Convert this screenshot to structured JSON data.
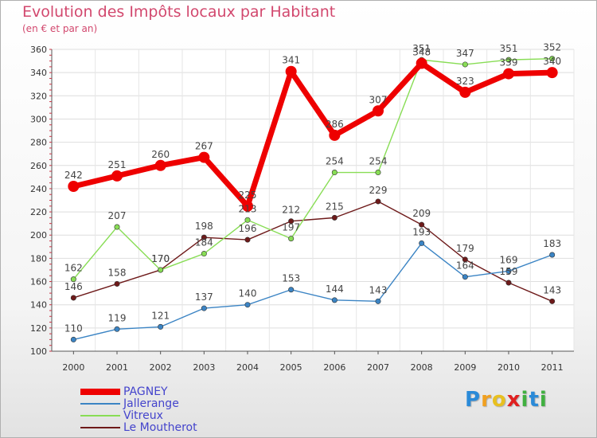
{
  "chart_data": {
    "type": "line",
    "title": "Evolution des Impôts locaux par Habitant",
    "subtitle": "(en € et par an)",
    "xlabel": "",
    "ylabel": "",
    "ylim": [
      100,
      360
    ],
    "yticks": [
      100,
      120,
      140,
      160,
      180,
      200,
      220,
      240,
      260,
      280,
      300,
      320,
      340,
      360
    ],
    "categories": [
      "2000",
      "2001",
      "2002",
      "2003",
      "2004",
      "2005",
      "2006",
      "2007",
      "2008",
      "2009",
      "2010",
      "2011"
    ],
    "grid": true,
    "legend_position": "bottom-left",
    "series": [
      {
        "name": "Le Moutherot",
        "color": "#6e1a1a",
        "values": [
          146,
          158,
          170,
          198,
          196,
          212,
          215,
          229,
          209,
          179,
          159,
          143
        ],
        "label_texts": [
          "146",
          "158",
          "170",
          "198",
          "196",
          "212",
          "215",
          "229",
          "209",
          "179",
          "159",
          "143"
        ]
      },
      {
        "name": "Jallerange",
        "color": "#3b84c4",
        "values": [
          110,
          119,
          121,
          137,
          140,
          153,
          144,
          143,
          193,
          164,
          169,
          183
        ],
        "label_texts": [
          "110",
          "119",
          "121",
          "137",
          "140",
          "153",
          "144",
          "143",
          "193",
          "164",
          "169",
          "183"
        ]
      },
      {
        "name": "Vitreux",
        "color": "#88dd55",
        "values": [
          162,
          207,
          170,
          184,
          213,
          197,
          254,
          254,
          351,
          347,
          351,
          352
        ],
        "label_texts": [
          "162",
          "207",
          "170",
          "184",
          "213",
          "197",
          "254",
          "254",
          "351",
          "347",
          "351",
          "352"
        ]
      },
      {
        "name": "PAGNEY",
        "color": "#ee0000",
        "values": [
          242,
          251,
          260,
          267,
          225,
          341,
          286,
          307,
          348,
          323,
          339,
          340
        ],
        "label_texts": [
          "242",
          "251",
          "260",
          "267",
          "225",
          "341",
          "286",
          "307",
          "348",
          "323",
          "339",
          "340"
        ]
      }
    ],
    "legend": [
      "PAGNEY",
      "Jallerange",
      "Vitreux",
      "Le Moutherot"
    ]
  },
  "brand": {
    "letters": [
      "P",
      "r",
      "o",
      "x",
      "i",
      "t",
      "i"
    ],
    "colors": [
      "#2a8ad8",
      "#f0a020",
      "#e8c020",
      "#e02020",
      "#40b040",
      "#2a8ad8",
      "#40b040"
    ]
  }
}
